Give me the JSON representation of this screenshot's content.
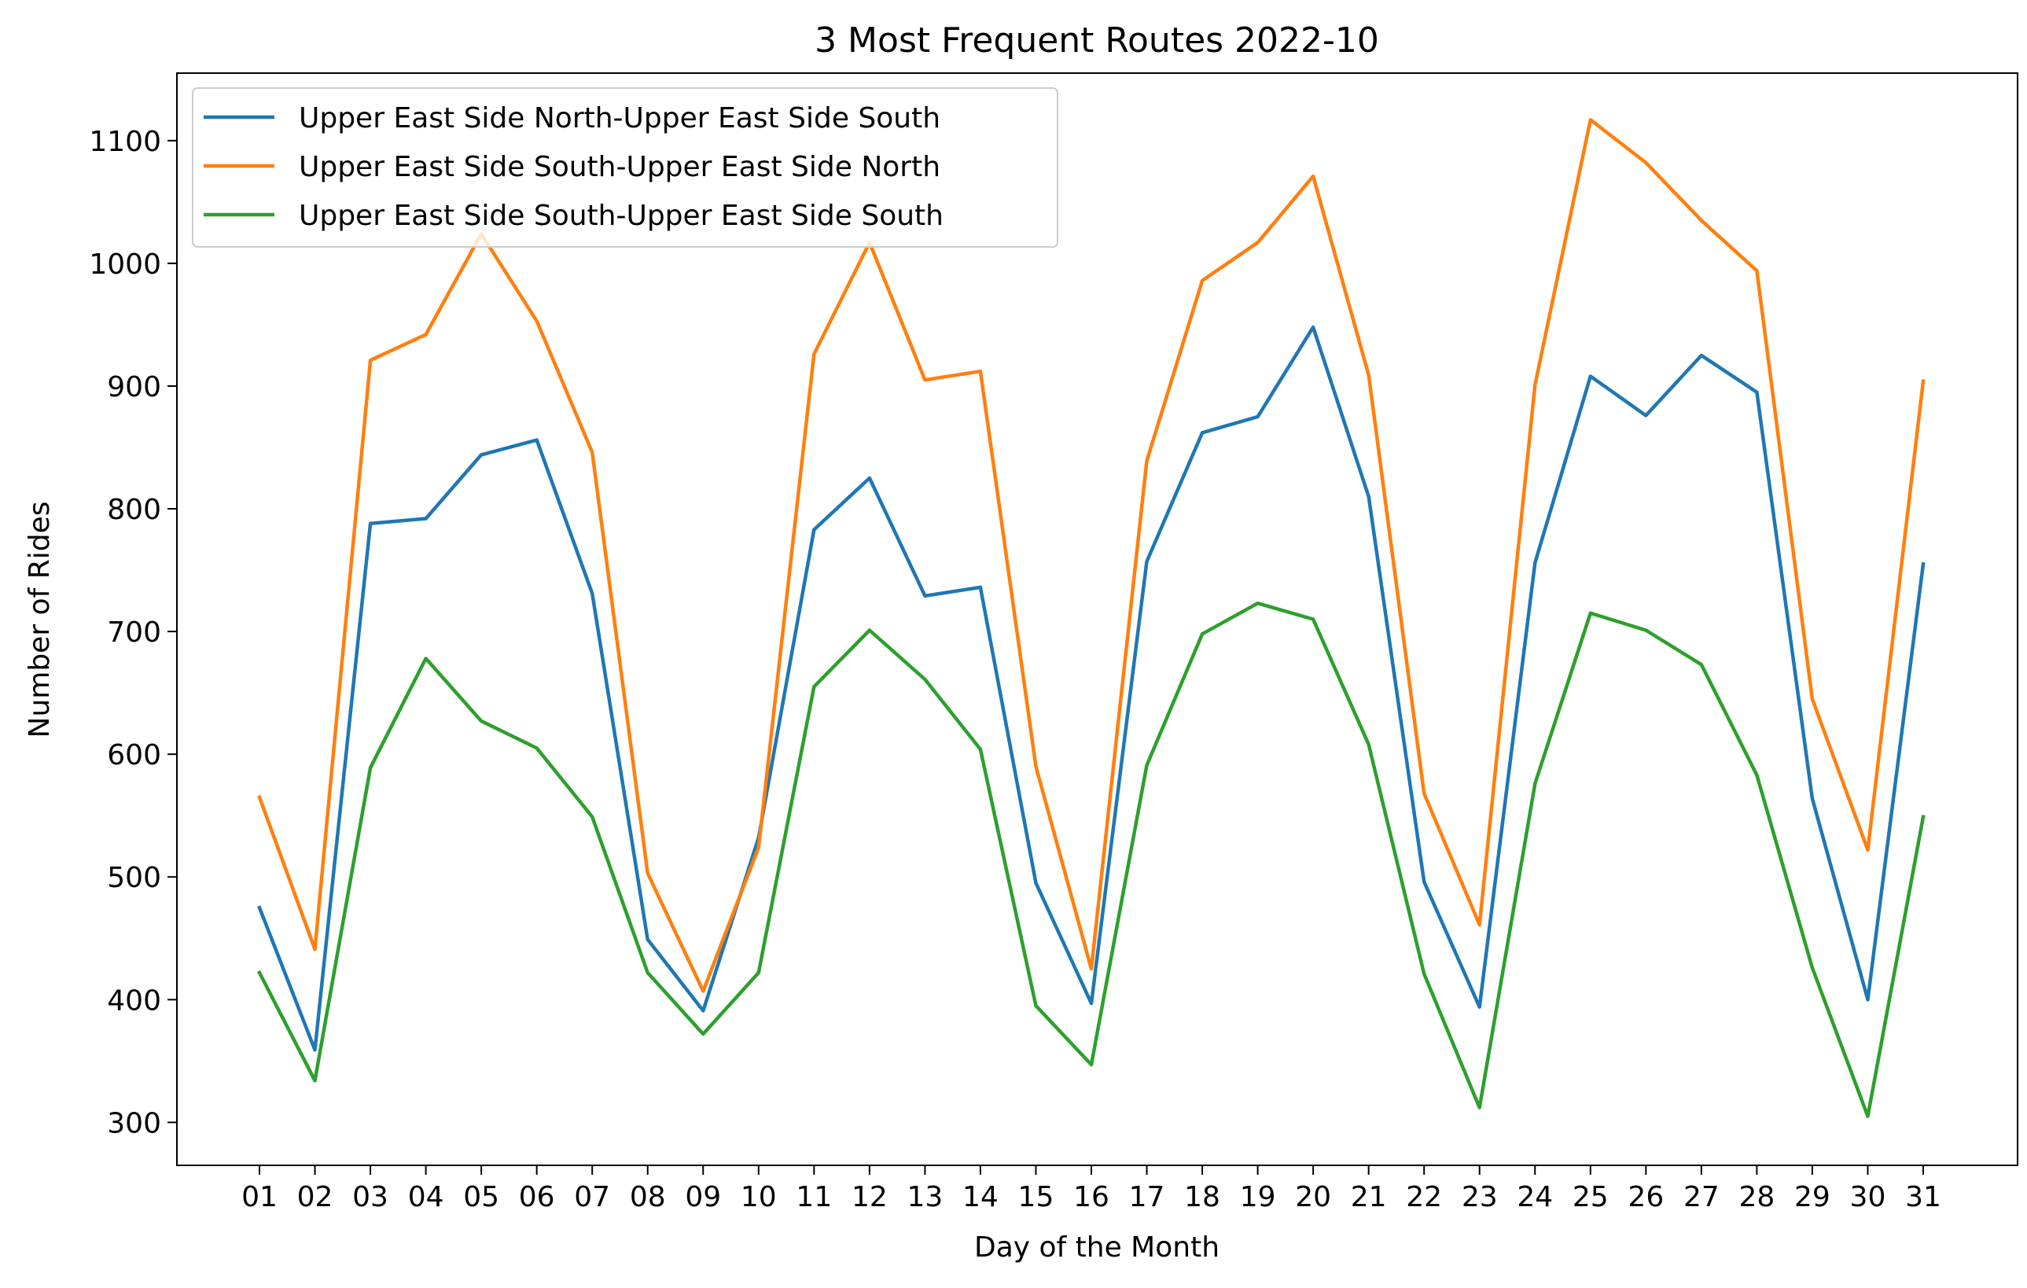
{
  "chart_data": {
    "type": "line",
    "title": "3 Most Frequent Routes 2022-10",
    "xlabel": "Day of the Month",
    "ylabel": "Number of Rides",
    "x": [
      "01",
      "02",
      "03",
      "04",
      "05",
      "06",
      "07",
      "08",
      "09",
      "10",
      "11",
      "12",
      "13",
      "14",
      "15",
      "16",
      "17",
      "18",
      "19",
      "20",
      "21",
      "22",
      "23",
      "24",
      "25",
      "26",
      "27",
      "28",
      "29",
      "30",
      "31"
    ],
    "yticks": [
      300,
      400,
      500,
      600,
      700,
      800,
      900,
      1000,
      1100
    ],
    "ylim": [
      265,
      1155
    ],
    "grid": false,
    "legend_position": "top-left",
    "series": [
      {
        "name": "Upper East Side North-Upper East Side South",
        "color": "#1f77b4",
        "values": [
          475,
          359,
          788,
          792,
          844,
          856,
          731,
          449,
          391,
          532,
          783,
          825,
          729,
          736,
          495,
          397,
          757,
          862,
          875,
          948,
          810,
          496,
          394,
          756,
          908,
          876,
          925,
          895,
          564,
          400,
          755
        ]
      },
      {
        "name": "Upper East Side South-Upper East Side North",
        "color": "#ff7f0e",
        "values": [
          565,
          441,
          921,
          942,
          1024,
          953,
          846,
          503,
          407,
          524,
          926,
          1017,
          905,
          912,
          590,
          425,
          839,
          986,
          1017,
          1071,
          909,
          568,
          461,
          901,
          1117,
          1082,
          1035,
          994,
          645,
          522,
          904
        ]
      },
      {
        "name": "Upper East Side South-Upper East Side South",
        "color": "#2ca02c",
        "values": [
          422,
          334,
          589,
          678,
          627,
          605,
          549,
          422,
          372,
          422,
          655,
          701,
          661,
          604,
          395,
          347,
          591,
          698,
          723,
          710,
          608,
          421,
          312,
          576,
          715,
          701,
          673,
          583,
          426,
          305,
          549
        ]
      }
    ]
  }
}
